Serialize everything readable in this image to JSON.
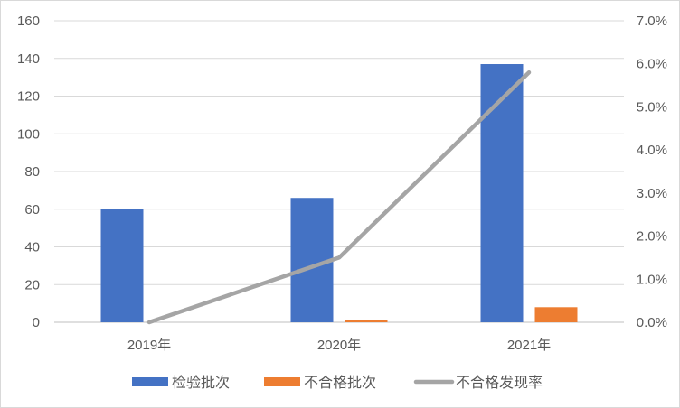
{
  "chart_data": {
    "type": "bar",
    "categories": [
      "2019年",
      "2020年",
      "2021年"
    ],
    "series": [
      {
        "name": "检验批次",
        "kind": "bar",
        "axis": "left",
        "color": "#4472C4",
        "values": [
          60,
          66,
          137
        ]
      },
      {
        "name": "不合格批次",
        "kind": "bar",
        "axis": "left",
        "color": "#ED7D31",
        "values": [
          0,
          1,
          8
        ]
      },
      {
        "name": "不合格发现率",
        "kind": "line",
        "axis": "right",
        "color": "#A5A5A5",
        "values": [
          0.0,
          1.5,
          5.8
        ]
      }
    ],
    "y_left": {
      "min": 0,
      "max": 160,
      "step": 20,
      "ticks": [
        "0",
        "20",
        "40",
        "60",
        "80",
        "100",
        "120",
        "140",
        "160"
      ]
    },
    "y_right": {
      "min": 0,
      "max": 7,
      "step": 1,
      "ticks": [
        "0.0%",
        "1.0%",
        "2.0%",
        "3.0%",
        "4.0%",
        "5.0%",
        "6.0%",
        "7.0%"
      ]
    },
    "grid": true,
    "legend_position": "bottom",
    "title": "",
    "xlabel": "",
    "ylabel": ""
  }
}
